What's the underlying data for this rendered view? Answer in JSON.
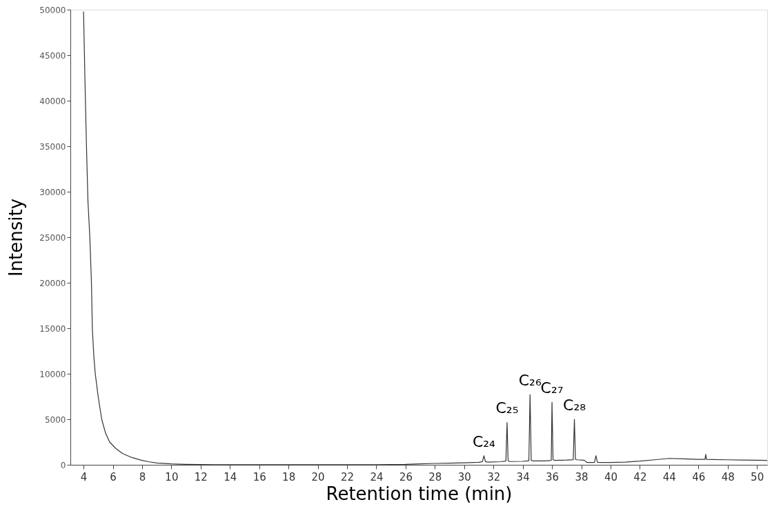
{
  "chart_data": {
    "type": "line",
    "xlabel": "Retention time (min)",
    "ylabel": "Intensity",
    "xlim": [
      3.1,
      50.7
    ],
    "xticks": [
      4,
      6,
      8,
      10,
      12,
      14,
      16,
      18,
      20,
      22,
      24,
      26,
      28,
      30,
      32,
      34,
      36,
      38,
      40,
      42,
      44,
      46,
      48,
      50
    ],
    "ylim": [
      0,
      50000
    ],
    "yticks": [
      0,
      5000,
      10000,
      15000,
      20000,
      25000,
      30000,
      35000,
      40000,
      45000,
      50000
    ],
    "grid": false,
    "marker": "none",
    "line_style": "solid",
    "series": [
      {
        "color": "#333333",
        "x": [
          4.0,
          4.1,
          4.2,
          4.3,
          4.43,
          4.54,
          4.6,
          4.7,
          4.8,
          5.0,
          5.24,
          5.5,
          5.78,
          6.2,
          6.65,
          7.3,
          7.95,
          8.5,
          9.0,
          10.0,
          11.0,
          13.0,
          16.0,
          20.0,
          24.0,
          26.0,
          27.0,
          28.0,
          29.0,
          30.0,
          31.0,
          31.25,
          31.35,
          31.45,
          31.6,
          32.5,
          32.85,
          32.93,
          33.0,
          33.1,
          34.0,
          34.42,
          34.5,
          34.58,
          34.7,
          35.5,
          35.95,
          36.0,
          36.07,
          36.2,
          37.0,
          37.45,
          37.53,
          37.6,
          37.7,
          38.2,
          38.4,
          38.9,
          39.0,
          39.1,
          39.3,
          40.0,
          41.0,
          42.0,
          43.0,
          44.0,
          45.0,
          46.0,
          46.45,
          46.5,
          46.55,
          47.0,
          48.0,
          49.0,
          50.0,
          50.7
        ],
        "values": [
          49800,
          42000,
          35000,
          29000,
          25000,
          20000,
          15000,
          12000,
          10000,
          7500,
          5000,
          3500,
          2500,
          1800,
          1250,
          800,
          500,
          320,
          200,
          100,
          50,
          20,
          10,
          10,
          20,
          40,
          100,
          150,
          180,
          220,
          280,
          350,
          1000,
          350,
          300,
          340,
          400,
          4660,
          450,
          360,
          380,
          450,
          7700,
          500,
          420,
          430,
          480,
          6860,
          550,
          480,
          520,
          560,
          5000,
          600,
          550,
          500,
          250,
          250,
          1000,
          280,
          250,
          260,
          300,
          400,
          550,
          700,
          650,
          600,
          600,
          1150,
          600,
          580,
          550,
          520,
          500,
          480
        ]
      }
    ],
    "annotations": [
      {
        "text": "C₂₄",
        "x": 31.35,
        "y": 1000
      },
      {
        "text": "C₂₅",
        "x": 32.93,
        "y": 4660
      },
      {
        "text": "C₂₆",
        "x": 34.5,
        "y": 7700
      },
      {
        "text": "C₂₇",
        "x": 36.0,
        "y": 6860
      },
      {
        "text": "C₂₈",
        "x": 37.53,
        "y": 5000
      }
    ]
  }
}
